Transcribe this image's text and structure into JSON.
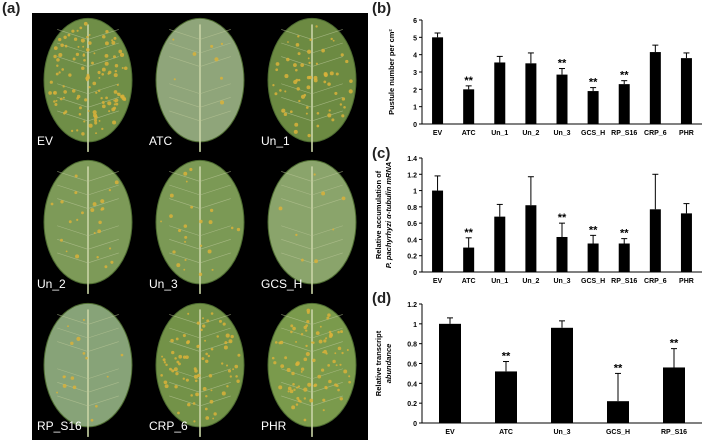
{
  "figure": {
    "panel_letters": [
      "(a)",
      "(b)",
      "(c)",
      "(d)"
    ],
    "leaf_labels": [
      "EV",
      "ATC",
      "Un_1",
      "Un_2",
      "Un_3",
      "GCS_H",
      "RP_S16",
      "CRP_6",
      "PHR"
    ],
    "leaf_rust_level": [
      0.75,
      0.05,
      0.4,
      0.15,
      0.15,
      0.05,
      0.1,
      0.5,
      0.55
    ],
    "colors": {
      "bar": "#000000",
      "leaf_green": "#6f8e47",
      "rust": "#d9b23a",
      "background": "#000000"
    }
  },
  "chart_data": [
    {
      "type": "bar",
      "panel": "(b)",
      "categories": [
        "EV",
        "ATC",
        "Un_1",
        "Un_2",
        "Un_3",
        "GCS_H",
        "RP_S16",
        "CRP_6",
        "PHR"
      ],
      "values": [
        5.0,
        2.0,
        3.55,
        3.5,
        2.85,
        1.9,
        2.3,
        4.15,
        3.8
      ],
      "errors": [
        0.25,
        0.2,
        0.35,
        0.6,
        0.35,
        0.2,
        0.2,
        0.4,
        0.3
      ],
      "significance": [
        "",
        "**",
        "",
        "",
        "**",
        "**",
        "**",
        "",
        ""
      ],
      "ylabel": "Pustule number per cm²",
      "ylim": [
        0,
        6
      ],
      "yticks": [
        "0",
        "1",
        "2",
        "3",
        "4",
        "5",
        "6"
      ]
    },
    {
      "type": "bar",
      "panel": "(c)",
      "categories": [
        "EV",
        "ATC",
        "Un_1",
        "Un_2",
        "Un_3",
        "GCS_H",
        "RP_S16",
        "CRP_6",
        "PHR"
      ],
      "values": [
        1.0,
        0.3,
        0.68,
        0.82,
        0.43,
        0.35,
        0.35,
        0.77,
        0.72
      ],
      "errors": [
        0.18,
        0.12,
        0.15,
        0.35,
        0.17,
        0.1,
        0.06,
        0.43,
        0.12
      ],
      "significance": [
        "",
        "**",
        "",
        "",
        "**",
        "**",
        "**",
        "",
        ""
      ],
      "ylabel_line1": "Relative accumulation of",
      "ylabel_line2": "P. pachyrhyzi α-tubulin mRNA",
      "ylim": [
        0,
        1.4
      ],
      "yticks": [
        "0",
        "0.2",
        "0.4",
        "0.6",
        "0.8",
        "1",
        "1.2",
        "1.4"
      ]
    },
    {
      "type": "bar",
      "panel": "(d)",
      "categories": [
        "EV",
        "ATC",
        "Un_3",
        "GCS_H",
        "RP_S16"
      ],
      "values": [
        1.0,
        0.52,
        0.96,
        0.22,
        0.56
      ],
      "errors": [
        0.06,
        0.1,
        0.07,
        0.28,
        0.19
      ],
      "significance": [
        "",
        "**",
        "",
        "**",
        "**"
      ],
      "ylabel_line1": "Relative transcript",
      "ylabel_line2": "abundance",
      "ylim": [
        0,
        1.2
      ],
      "yticks": [
        "0",
        "0.2",
        "0.4",
        "0.6",
        "0.8",
        "1",
        "1.2"
      ]
    }
  ]
}
